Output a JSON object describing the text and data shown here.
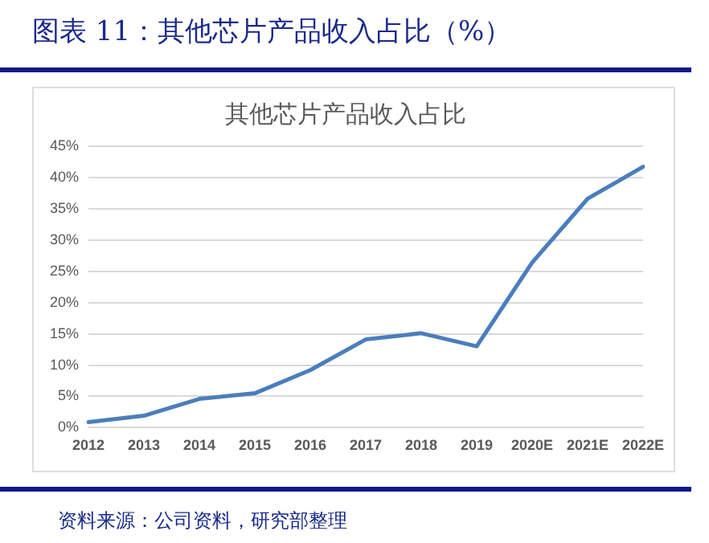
{
  "chart_data": {
    "type": "line",
    "title": "图表 11：其他芯片产品收入占比（%）",
    "subtitle": "其他芯片产品收入占比",
    "categories": [
      "2012",
      "2013",
      "2014",
      "2015",
      "2016",
      "2017",
      "2018",
      "2019",
      "2020E",
      "2021E",
      "2022E"
    ],
    "series": [
      {
        "color": "#4a7ebb",
        "values": [
          0.9,
          1.9,
          4.6,
          5.5,
          9.2,
          14.1,
          15.1,
          13.0,
          26.4,
          36.6,
          41.7
        ]
      }
    ],
    "ylim": [
      0,
      45
    ],
    "yticks": [
      {
        "value": 0,
        "label": "0%"
      },
      {
        "value": 5,
        "label": "5%"
      },
      {
        "value": 10,
        "label": "10%"
      },
      {
        "value": 15,
        "label": "15%"
      },
      {
        "value": 20,
        "label": "20%"
      },
      {
        "value": 25,
        "label": "25%"
      },
      {
        "value": 30,
        "label": "30%"
      },
      {
        "value": 35,
        "label": "35%"
      },
      {
        "value": 40,
        "label": "40%"
      },
      {
        "value": 45,
        "label": "45%"
      }
    ],
    "grid": "y",
    "legend": false,
    "marker": "none",
    "line_style": "solid",
    "annotations": [
      "资料来源：公司资料，研究部整理"
    ]
  }
}
